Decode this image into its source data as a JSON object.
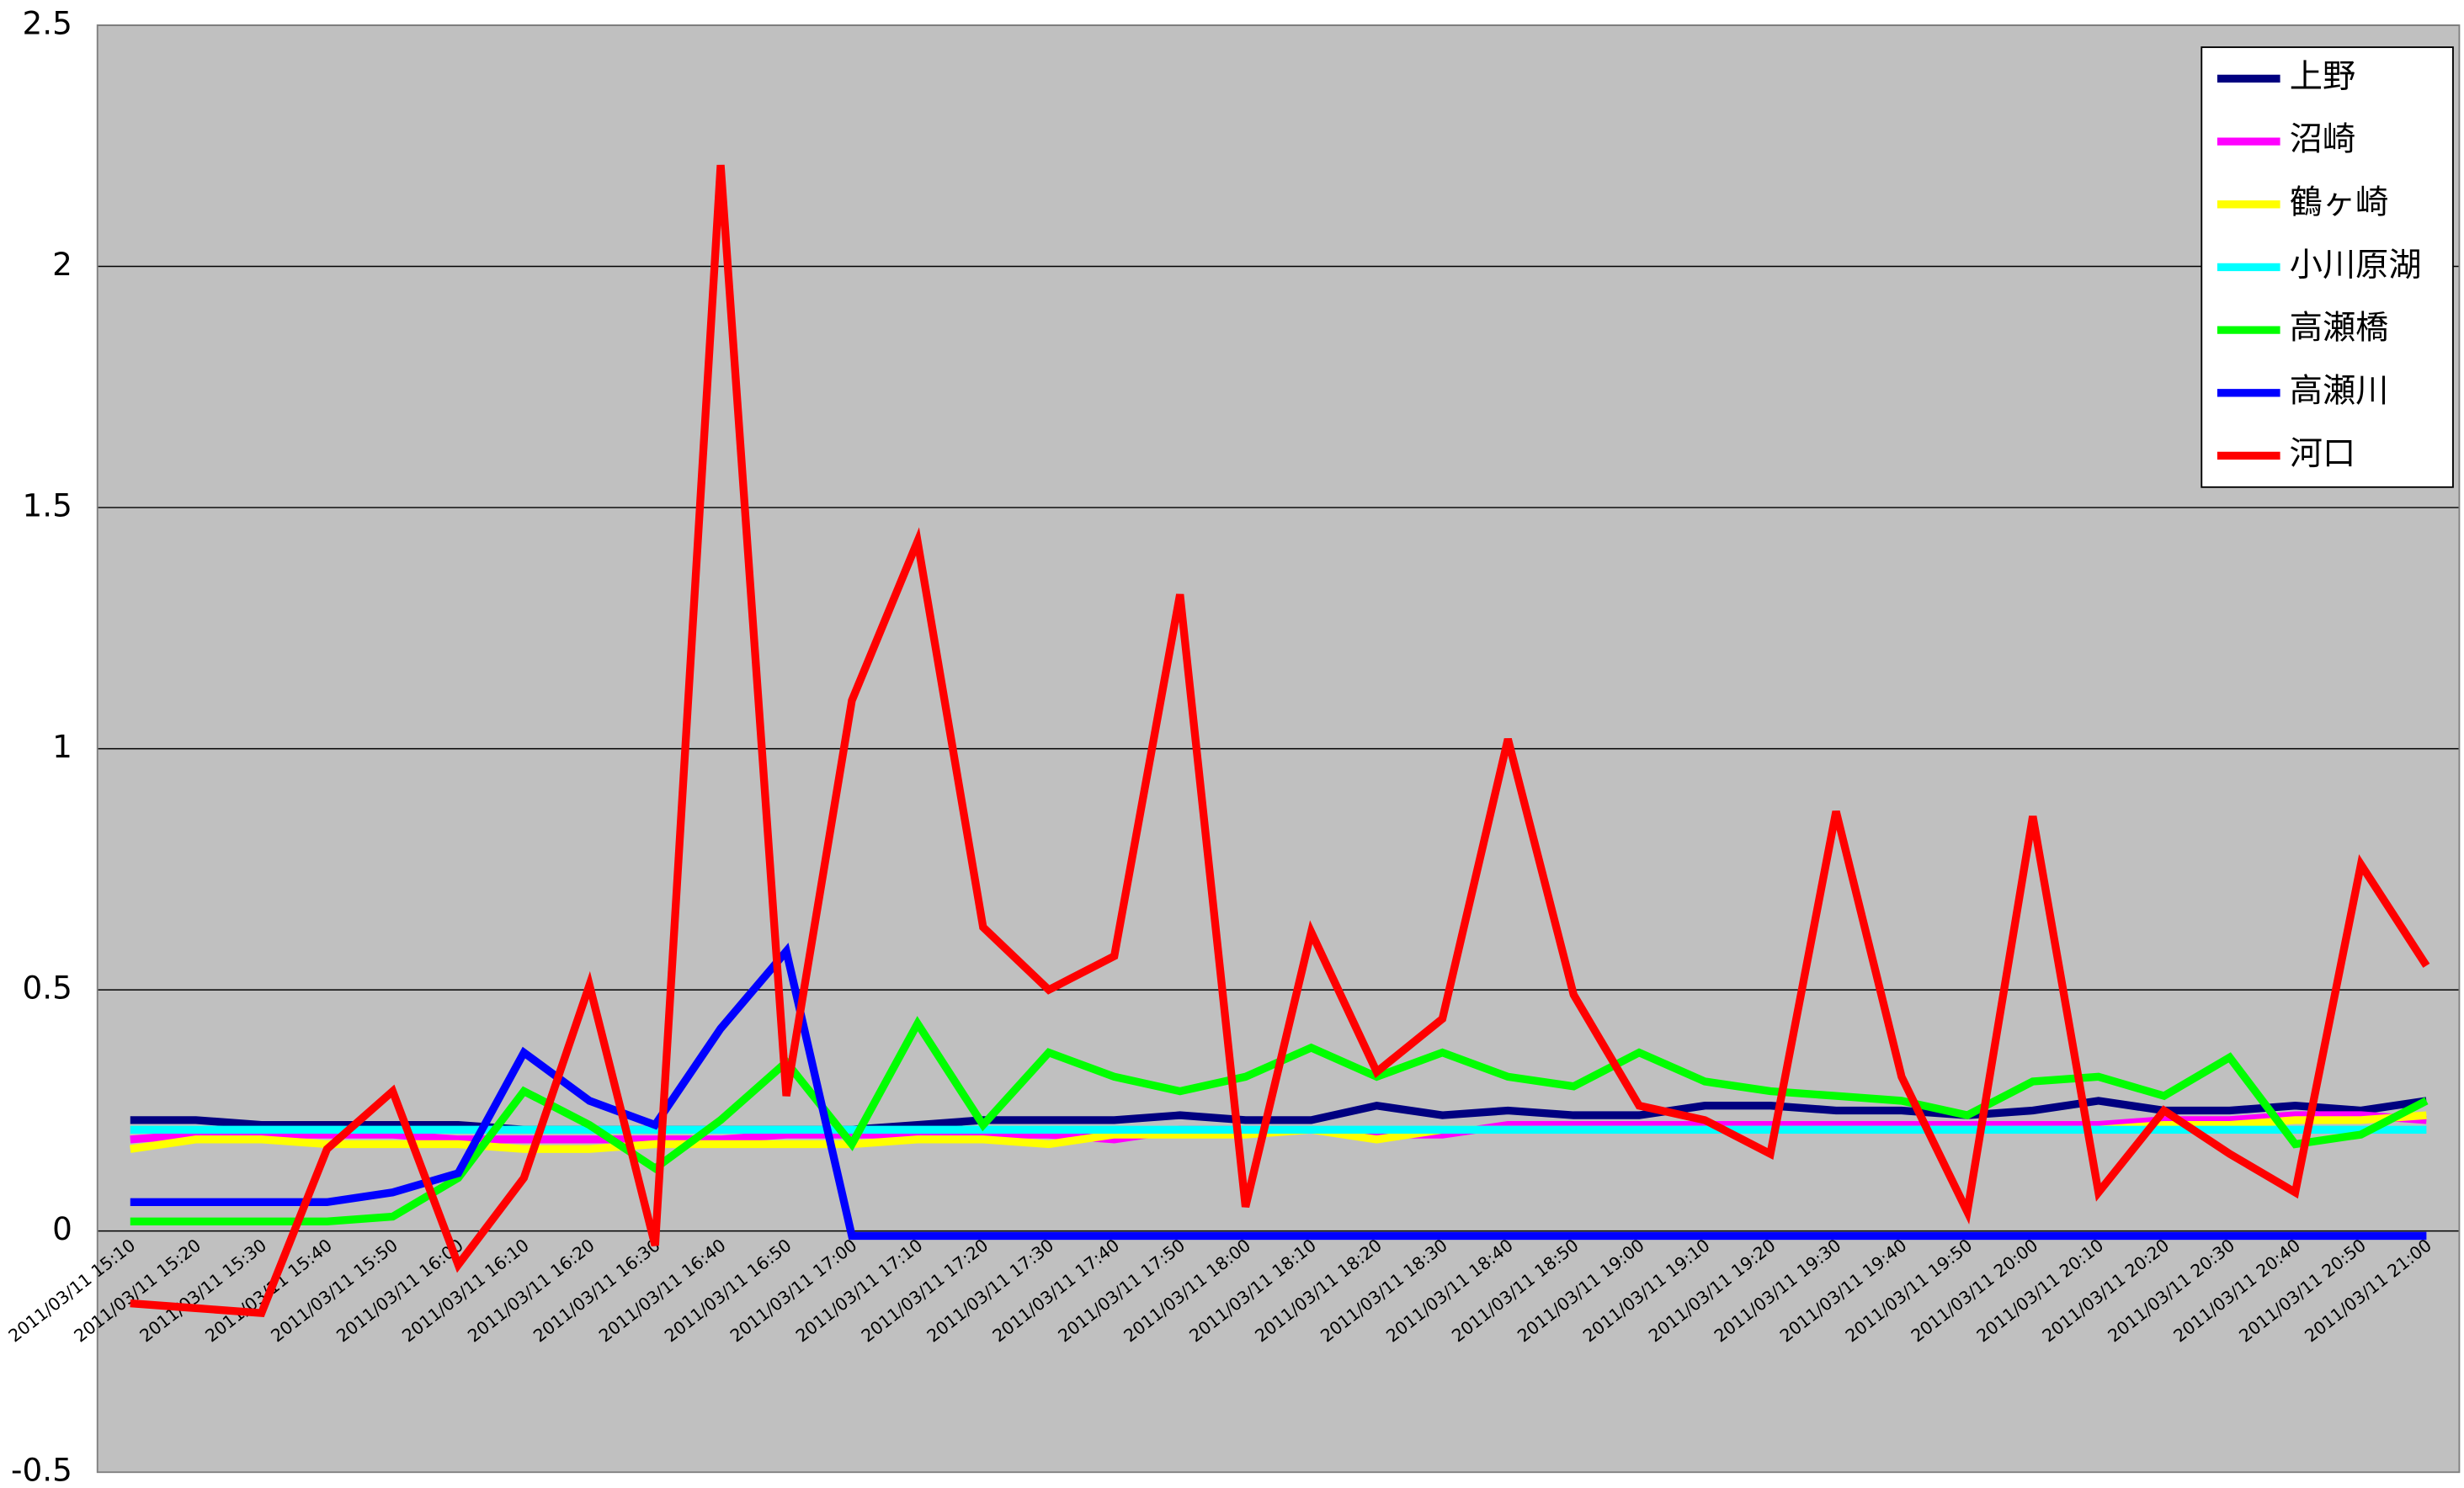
{
  "chart_data": {
    "type": "line",
    "categories": [
      "2011/03/11 15:10",
      "2011/03/11 15:20",
      "2011/03/11 15:30",
      "2011/03/11 15:40",
      "2011/03/11 15:50",
      "2011/03/11 16:00",
      "2011/03/11 16:10",
      "2011/03/11 16:20",
      "2011/03/11 16:30",
      "2011/03/11 16:40",
      "2011/03/11 16:50",
      "2011/03/11 17:00",
      "2011/03/11 17:10",
      "2011/03/11 17:20",
      "2011/03/11 17:30",
      "2011/03/11 17:40",
      "2011/03/11 17:50",
      "2011/03/11 18:00",
      "2011/03/11 18:10",
      "2011/03/11 18:20",
      "2011/03/11 18:30",
      "2011/03/11 18:40",
      "2011/03/11 18:50",
      "2011/03/11 19:00",
      "2011/03/11 19:10",
      "2011/03/11 19:20",
      "2011/03/11 19:30",
      "2011/03/11 19:40",
      "2011/03/11 19:50",
      "2011/03/11 20:00",
      "2011/03/11 20:10",
      "2011/03/11 20:20",
      "2011/03/11 20:30",
      "2011/03/11 20:40",
      "2011/03/11 20:50",
      "2011/03/11 21:00"
    ],
    "series": [
      {
        "name": "上野",
        "color": "#000080",
        "values": [
          0.23,
          0.23,
          0.22,
          0.22,
          0.22,
          0.22,
          0.21,
          0.21,
          0.21,
          0.21,
          0.21,
          0.21,
          0.22,
          0.23,
          0.23,
          0.23,
          0.24,
          0.23,
          0.23,
          0.26,
          0.24,
          0.25,
          0.24,
          0.24,
          0.26,
          0.26,
          0.25,
          0.25,
          0.24,
          0.25,
          0.27,
          0.25,
          0.25,
          0.26,
          0.25,
          0.27
        ]
      },
      {
        "name": "沼崎",
        "color": "#ff00ff",
        "values": [
          0.19,
          0.2,
          0.2,
          0.2,
          0.2,
          0.19,
          0.19,
          0.19,
          0.19,
          0.19,
          0.2,
          0.2,
          0.2,
          0.2,
          0.2,
          0.19,
          0.21,
          0.21,
          0.21,
          0.2,
          0.2,
          0.22,
          0.22,
          0.22,
          0.22,
          0.22,
          0.22,
          0.22,
          0.22,
          0.22,
          0.22,
          0.23,
          0.23,
          0.24,
          0.24,
          0.23
        ]
      },
      {
        "name": "鶴ヶ崎",
        "color": "#ffff00",
        "values": [
          0.17,
          0.19,
          0.19,
          0.18,
          0.18,
          0.18,
          0.17,
          0.17,
          0.18,
          0.18,
          0.18,
          0.18,
          0.19,
          0.19,
          0.18,
          0.2,
          0.2,
          0.2,
          0.21,
          0.19,
          0.21,
          0.21,
          0.21,
          0.21,
          0.21,
          0.21,
          0.21,
          0.21,
          0.21,
          0.21,
          0.21,
          0.22,
          0.22,
          0.23,
          0.23,
          0.24
        ]
      },
      {
        "name": "小川原湖",
        "color": "#00ffff",
        "values": [
          0.21,
          0.21,
          0.21,
          0.21,
          0.21,
          0.21,
          0.21,
          0.21,
          0.21,
          0.21,
          0.21,
          0.21,
          0.21,
          0.21,
          0.21,
          0.21,
          0.21,
          0.21,
          0.21,
          0.21,
          0.21,
          0.21,
          0.21,
          0.21,
          0.21,
          0.21,
          0.21,
          0.21,
          0.21,
          0.21,
          0.21,
          0.21,
          0.21,
          0.21,
          0.21,
          0.21
        ]
      },
      {
        "name": "高瀬橋",
        "color": "#00ff00",
        "values": [
          0.02,
          0.02,
          0.02,
          0.02,
          0.03,
          0.11,
          0.29,
          0.22,
          0.13,
          0.23,
          0.35,
          0.18,
          0.43,
          0.22,
          0.37,
          0.32,
          0.29,
          0.32,
          0.38,
          0.32,
          0.37,
          0.32,
          0.3,
          0.37,
          0.31,
          0.29,
          0.28,
          0.27,
          0.24,
          0.31,
          0.32,
          0.28,
          0.36,
          0.18,
          0.2,
          0.27
        ]
      },
      {
        "name": "高瀬川",
        "color": "#0000ff",
        "values": [
          0.06,
          0.06,
          0.06,
          0.06,
          0.08,
          0.12,
          0.37,
          0.27,
          0.22,
          0.42,
          0.58,
          -0.01,
          -0.01,
          -0.01,
          -0.01,
          -0.01,
          -0.01,
          -0.01,
          -0.01,
          -0.01,
          -0.01,
          -0.01,
          -0.01,
          -0.01,
          -0.01,
          -0.01,
          -0.01,
          -0.01,
          -0.01,
          -0.01,
          -0.01,
          -0.01,
          -0.01,
          -0.01,
          -0.01,
          -0.01
        ]
      },
      {
        "name": "河口",
        "color": "#ff0000",
        "values": [
          -0.15,
          -0.16,
          -0.17,
          0.17,
          0.29,
          -0.07,
          0.11,
          0.51,
          -0.03,
          2.21,
          0.28,
          1.1,
          1.43,
          0.63,
          0.5,
          0.57,
          1.32,
          0.05,
          0.62,
          0.33,
          0.44,
          1.02,
          0.49,
          0.26,
          0.23,
          0.16,
          0.87,
          0.32,
          0.04,
          0.86,
          0.08,
          0.25,
          0.16,
          0.08,
          0.76,
          0.55
        ]
      }
    ],
    "ylim": [
      -0.5,
      2.5
    ],
    "yticks": [
      -0.5,
      0,
      0.5,
      1,
      1.5,
      2,
      2.5
    ],
    "grid": true,
    "legend": "top-right",
    "background": "#c0c0c0"
  }
}
